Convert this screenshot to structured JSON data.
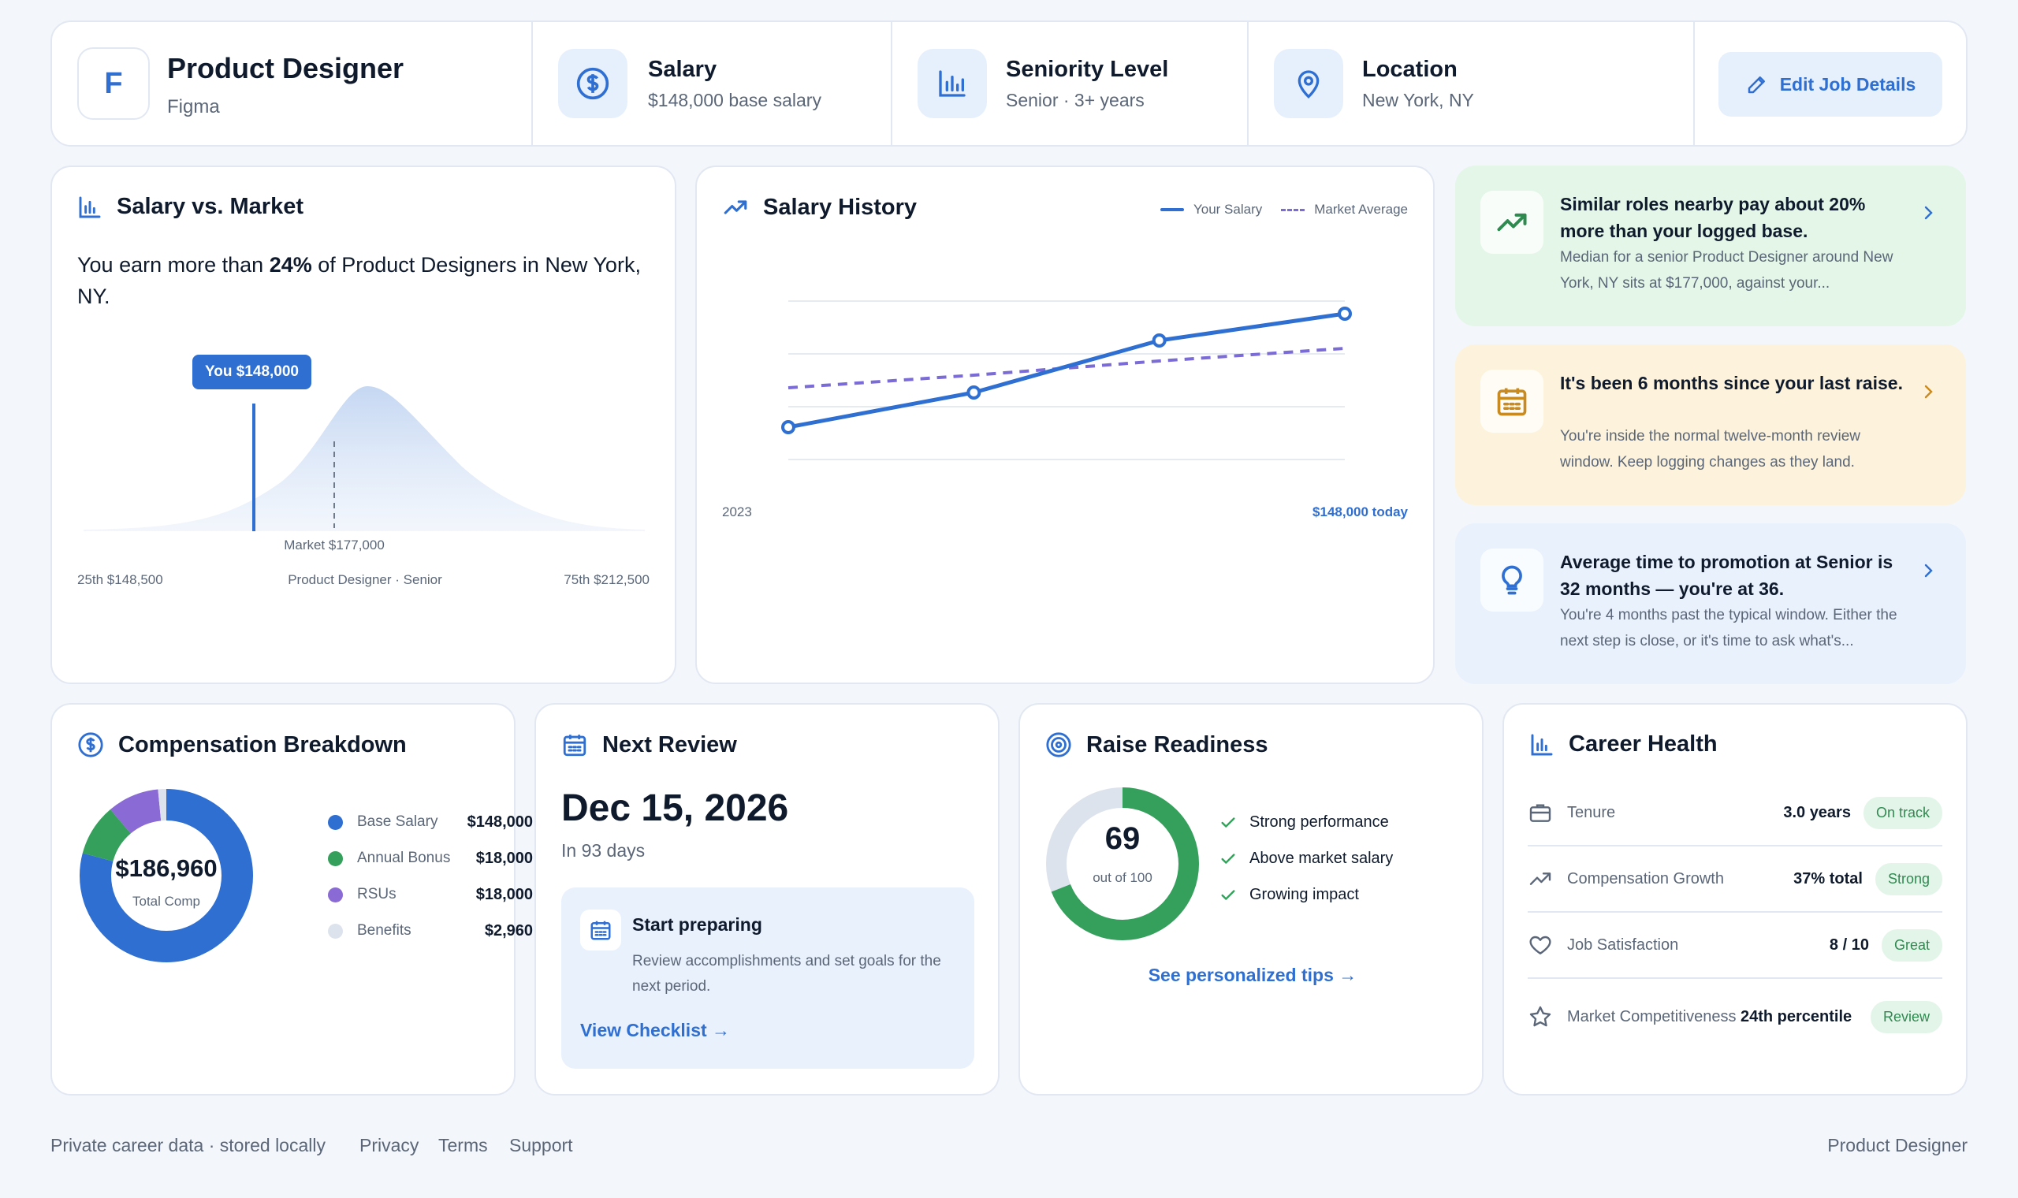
{
  "header": {
    "logo_letter": "F",
    "job_title": "Product Designer",
    "company": "Figma",
    "salary_label": "Salary",
    "salary_value": "$148,000 base salary",
    "seniority_label": "Seniority Level",
    "seniority_value": "Senior · 3+ years",
    "location_label": "Location",
    "location_value": "New York, NY",
    "edit_button": "Edit Job Details"
  },
  "salary_market": {
    "title": "Salary vs. Market",
    "summary_pre": "You earn more than ",
    "summary_pct": "24%",
    "summary_post": " of Product Designers in New York, NY.",
    "you_tag": "You $148,000",
    "market_label": "Market $177,000",
    "p25": "25th $148,500",
    "role": "Product Designer · Senior",
    "p75": "75th $212,500"
  },
  "salary_history": {
    "title": "Salary History",
    "legend_yours": "Your Salary",
    "legend_market": "Market Average",
    "start_label": "2023",
    "end_label": "$148,000 today"
  },
  "chart_data": {
    "type": "line",
    "series": [
      {
        "name": "Your Salary",
        "values": [
          0.2,
          0.42,
          0.75,
          0.92
        ]
      },
      {
        "name": "Market Average",
        "values": [
          0.45,
          0.53,
          0.62,
          0.7
        ]
      }
    ]
  },
  "insights": [
    {
      "title": "Similar roles nearby pay about 20% more than your logged base.",
      "desc": "Median for a senior Product Designer around New York, NY sits at $177,000, against your...",
      "bg": "#e3f6e8",
      "accent": "#2f8a50"
    },
    {
      "title": "It's been 6 months since your last raise.",
      "desc": "You're inside the normal twelve-month review window. Keep logging changes as they land.",
      "bg": "#fdf3dc",
      "accent": "#c98a1f"
    },
    {
      "title": "Average time to promotion at Senior is 32 months — you're at 36.",
      "desc": "You're 4 months past the typical window. Either the next step is close, or it's time to ask what's...",
      "bg": "#e8f1fc",
      "accent": "#2f6fd1"
    }
  ],
  "compensation": {
    "title": "Compensation Breakdown",
    "total": "$186,960",
    "total_label": "Total Comp",
    "items": [
      {
        "label": "Base Salary",
        "value": "$148,000",
        "amount": 148000,
        "color": "#2f6fd1"
      },
      {
        "label": "Annual Bonus",
        "value": "$18,000",
        "amount": 18000,
        "color": "#35a05b"
      },
      {
        "label": "RSUs",
        "value": "$18,000",
        "amount": 18000,
        "color": "#8a6ad4"
      },
      {
        "label": "Benefits",
        "value": "$2,960",
        "amount": 2960,
        "color": "#dde3ec"
      }
    ]
  },
  "next_review": {
    "title": "Next Review",
    "date": "Dec 15, 2026",
    "days": "In 93 days",
    "prep_title": "Start preparing",
    "prep_desc": "Review accomplishments and set goals for the next period.",
    "link": "View Checklist →"
  },
  "raise_readiness": {
    "title": "Raise Readiness",
    "score": "69",
    "score_value": 69,
    "score_max": 100,
    "out_of": "out of 100",
    "checks": [
      "Strong performance",
      "Above market salary",
      "Growing impact"
    ],
    "link": "See personalized tips →"
  },
  "career_health": {
    "title": "Career Health",
    "rows": [
      {
        "label": "Tenure",
        "value": "3.0 years",
        "badge": "On track",
        "icon": "briefcase-icon"
      },
      {
        "label": "Compensation Growth",
        "value": "37% total",
        "badge": "Strong",
        "icon": "trending-up-icon"
      },
      {
        "label": "Job Satisfaction",
        "value": "8 / 10",
        "badge": "Great",
        "icon": "heart-icon"
      },
      {
        "label": "Market Competitiveness",
        "value": "24th percentile",
        "badge": "Review",
        "icon": "star-icon"
      }
    ]
  },
  "footer": {
    "privacy_note": "Private career data · stored locally",
    "links": [
      "Privacy",
      "Terms",
      "Support"
    ],
    "right": "Product Designer"
  }
}
